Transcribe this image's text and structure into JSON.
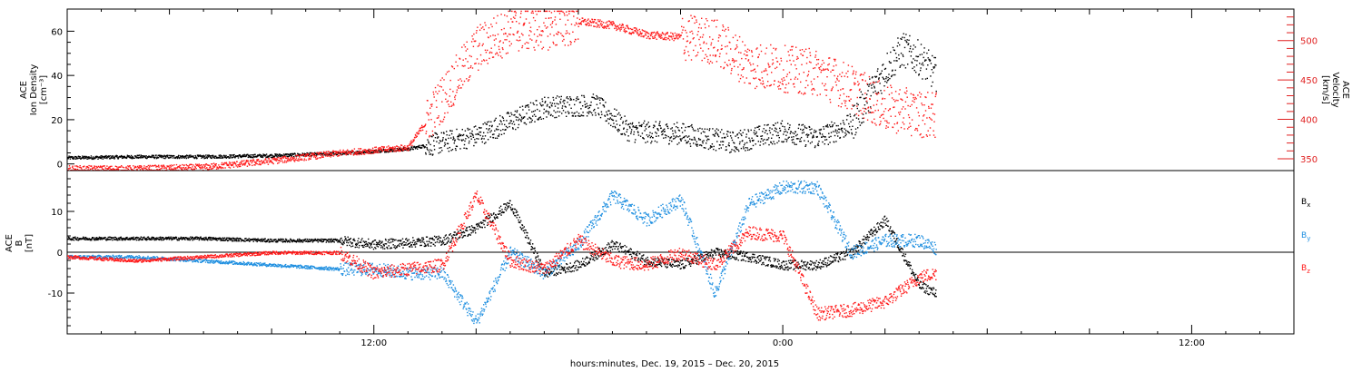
{
  "figure": {
    "xlabel": "hours:minutes, Dec. 19, 2015 – Dec. 20, 2015",
    "x_unit": "hours since Dec. 19, 2015 00:00",
    "x_range": [
      3,
      39
    ],
    "x_ticks": [
      {
        "value": 12,
        "label": "12:00"
      },
      {
        "value": 24,
        "label": "0:00"
      },
      {
        "value": 36,
        "label": "12:00"
      }
    ],
    "data_extent_hours": [
      3,
      28.5
    ]
  },
  "colors": {
    "black": "#000000",
    "red": "#ff1a1a",
    "blue": "#1f8fe0",
    "axis": "#000000",
    "right_axis": "#e02020"
  },
  "chart_data": [
    {
      "type": "scatter",
      "name_key": "density-velocity",
      "ylabel_left": [
        "ACE",
        "Ion Density",
        "[cm⁻³]"
      ],
      "ylabel_right": [
        "ACE",
        "Velocity",
        "[km/s]"
      ],
      "ylim_left": [
        -3,
        70
      ],
      "ylim_right": [
        335,
        540
      ],
      "yticks_left": [
        0,
        20,
        40,
        60
      ],
      "yticks_right": [
        350,
        400,
        450,
        500
      ],
      "series": [
        {
          "name": "Ion Density",
          "axis": "left",
          "color": "black",
          "x": [
            3,
            5,
            7,
            9,
            11,
            13,
            15,
            17,
            18.5,
            19.5,
            21,
            22.5,
            24,
            25,
            26,
            27,
            27.5,
            28,
            28.5
          ],
          "y": [
            3,
            3.5,
            3.5,
            4,
            5,
            7,
            13,
            26,
            27,
            15,
            14,
            10,
            15,
            12,
            18,
            43,
            52,
            48,
            40
          ]
        },
        {
          "name": "Velocity",
          "axis": "right",
          "color": "red",
          "x": [
            3,
            5,
            7,
            9,
            11,
            13,
            15,
            16,
            17,
            18,
            19,
            20,
            21,
            22,
            23,
            24,
            25,
            26,
            27,
            28,
            28.5
          ],
          "y": [
            338,
            338,
            340,
            348,
            358,
            365,
            490,
            515,
            518,
            525,
            520,
            508,
            505,
            500,
            470,
            465,
            460,
            440,
            415,
            408,
            405
          ]
        }
      ]
    },
    {
      "type": "scatter",
      "name_key": "imf",
      "ylabel_left": [
        "ACE",
        "B",
        "[nT]"
      ],
      "ylim": [
        -20,
        20
      ],
      "yticks": [
        -10,
        0,
        10
      ],
      "zero_line": true,
      "legend_position": "right",
      "series": [
        {
          "name": "Bx",
          "legend": "B",
          "legend_sub": "x",
          "color": "black",
          "x": [
            3,
            5,
            7,
            9,
            11,
            12,
            14,
            15,
            16,
            17,
            18,
            19,
            20,
            21,
            22,
            23,
            24,
            25,
            26,
            27,
            28,
            28.5
          ],
          "y": [
            3.5,
            3.5,
            3.5,
            3,
            3,
            2,
            3,
            6,
            12,
            -5,
            -3,
            2,
            -2,
            -3,
            0,
            -1,
            -3,
            -3,
            0,
            8,
            -8,
            -10
          ]
        },
        {
          "name": "By",
          "legend": "B",
          "legend_sub": "y",
          "color": "blue",
          "x": [
            3,
            5,
            7,
            9,
            11,
            12,
            13,
            14,
            15,
            16,
            17,
            18,
            19,
            20,
            21,
            22,
            23,
            24,
            25,
            26,
            27,
            28,
            28.5
          ],
          "y": [
            -1,
            -1,
            -2,
            -3,
            -4,
            -4,
            -5,
            -5,
            -17,
            0,
            -5,
            2,
            14,
            8,
            13,
            -10,
            12,
            16,
            16,
            0,
            3,
            3,
            1
          ]
        },
        {
          "name": "Bz",
          "legend": "B",
          "legend_sub": "z",
          "color": "red",
          "x": [
            3,
            5,
            7,
            9,
            11,
            12,
            13,
            14,
            15,
            16,
            17,
            18,
            19,
            20,
            21,
            22,
            23,
            24,
            25,
            26,
            27,
            28,
            28.5
          ],
          "y": [
            -1,
            -2,
            -1,
            0,
            0,
            -5,
            -4,
            -3,
            14,
            -2,
            -4,
            3,
            -2,
            -3,
            0,
            -3,
            5,
            4,
            -15,
            -14,
            -12,
            -6,
            -5
          ]
        }
      ]
    }
  ]
}
